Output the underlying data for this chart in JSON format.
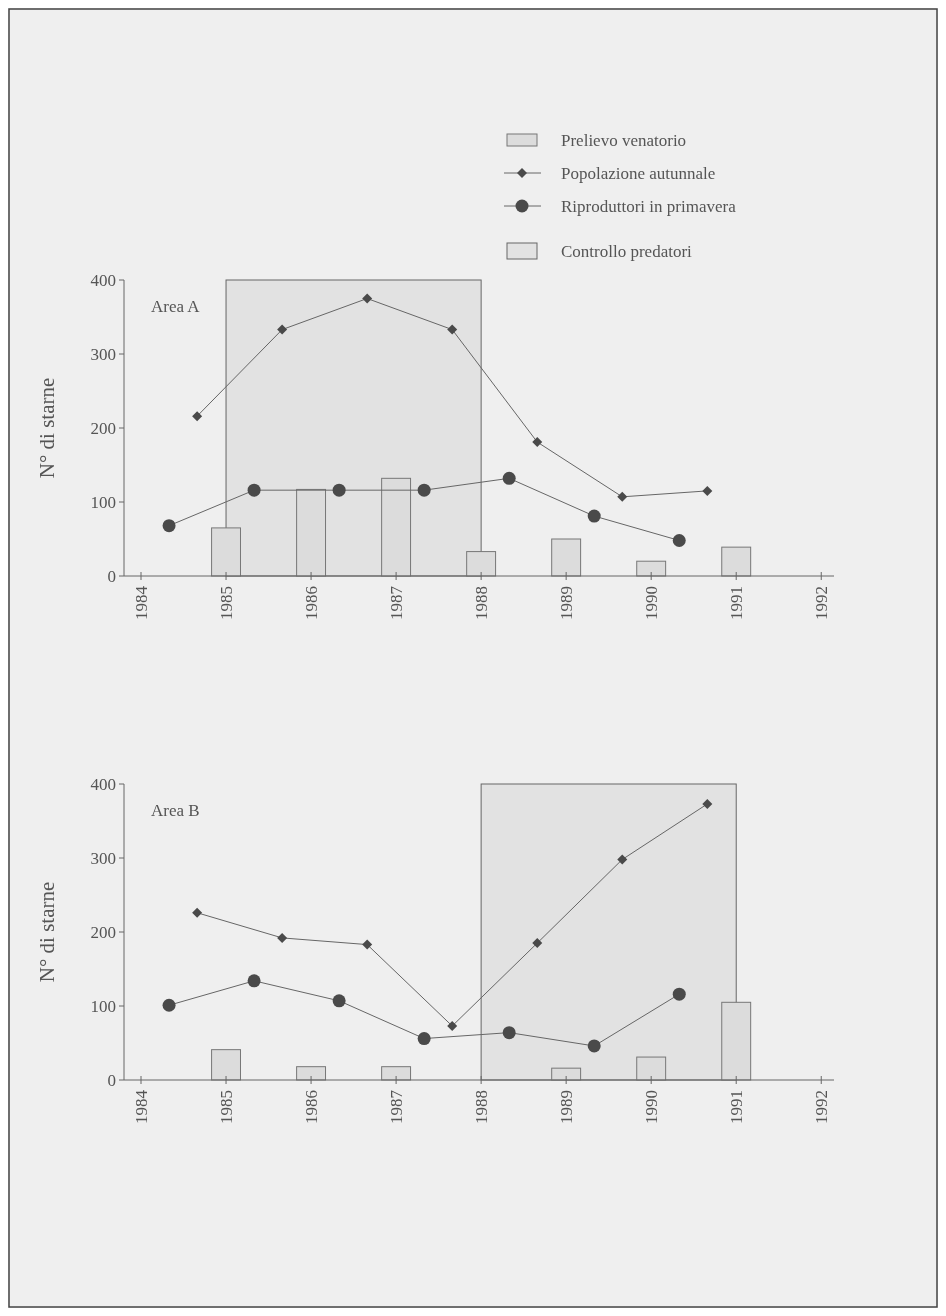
{
  "chart_data": [
    {
      "type": "bar",
      "ylabel": "N° di starne",
      "annotations": [
        "Area A"
      ],
      "legend": "top right",
      "grid": false,
      "xlim": [
        1983.8,
        1992.15
      ],
      "xticks": [
        1984,
        1985,
        1986,
        1987,
        1988,
        1989,
        1990,
        1991,
        1992
      ],
      "ylim": [
        0,
        400
      ],
      "yticks": [
        0,
        100,
        200,
        300,
        400
      ],
      "bands": [
        {
          "axis": "x",
          "from": 1985,
          "to": 1988,
          "label": "Controllo predatori",
          "color": "#999999"
        }
      ],
      "series": [
        {
          "name": "Prelievo venatorio",
          "color": "#dcdcdc",
          "x": [
            1985,
            1986,
            1987,
            1988,
            1989,
            1990,
            1991
          ],
          "values": [
            65,
            117,
            132,
            33,
            50,
            20,
            39
          ]
        },
        {
          "type": "line",
          "name": "Popolazione autunnale",
          "color": "#4a4a4a",
          "marker": "diamond",
          "x": [
            1984.66,
            1985.66,
            1986.66,
            1987.66,
            1988.66,
            1989.66,
            1990.66
          ],
          "values": [
            216,
            333,
            375,
            333,
            181,
            107,
            115
          ]
        },
        {
          "type": "line",
          "name": "Riproduttori in primavera",
          "color": "#4a4a4a",
          "marker": "circle",
          "x": [
            1984.33,
            1985.33,
            1986.33,
            1987.33,
            1988.33,
            1989.33,
            1990.33
          ],
          "values": [
            68,
            116,
            116,
            116,
            132,
            81,
            48
          ]
        }
      ]
    },
    {
      "type": "bar",
      "ylabel": "N° di starne",
      "annotations": [
        "Area B"
      ],
      "grid": false,
      "xlim": [
        1983.8,
        1992.15
      ],
      "xticks": [
        1984,
        1985,
        1986,
        1987,
        1988,
        1989,
        1990,
        1991,
        1992
      ],
      "ylim": [
        0,
        400
      ],
      "yticks": [
        0,
        100,
        200,
        300,
        400
      ],
      "bands": [
        {
          "axis": "x",
          "from": 1988,
          "to": 1991,
          "color": "#999999"
        }
      ],
      "series": [
        {
          "color": "#dcdcdc",
          "x": [
            1985,
            1986,
            1987,
            1989,
            1990,
            1991
          ],
          "values": [
            41,
            18,
            18,
            16,
            31,
            105
          ]
        },
        {
          "type": "line",
          "color": "#4a4a4a",
          "marker": "diamond",
          "x": [
            1984.66,
            1985.66,
            1986.66,
            1987.66,
            1988.66,
            1989.66,
            1990.66
          ],
          "values": [
            226,
            192,
            183,
            73,
            185,
            298,
            373
          ]
        },
        {
          "type": "line",
          "color": "#4a4a4a",
          "marker": "circle",
          "x": [
            1984.33,
            1985.33,
            1986.33,
            1987.33,
            1988.33,
            1989.33,
            1990.33
          ],
          "values": [
            101,
            134,
            107,
            56,
            64,
            46,
            116
          ]
        }
      ]
    }
  ]
}
